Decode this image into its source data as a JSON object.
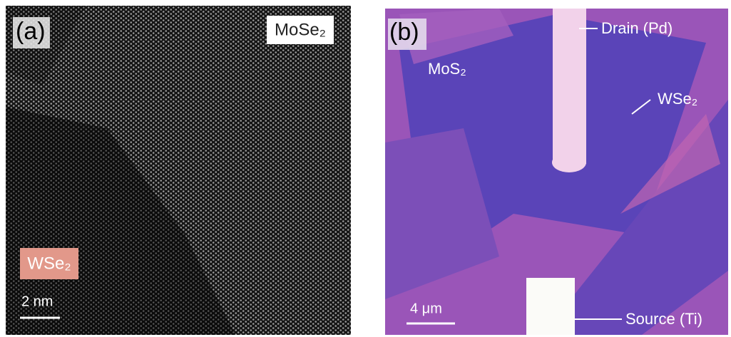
{
  "panel_a": {
    "label": "(a)",
    "top_material": "MoSe₂",
    "bottom_material": "WSe₂",
    "scale_bar": "2 nm"
  },
  "panel_b": {
    "label": "(b)",
    "left_material": "MoS₂",
    "drain": "Drain (Pd)",
    "right_material": "WSe₂",
    "source": "Source (Ti)",
    "scale_bar": "4 μm"
  }
}
